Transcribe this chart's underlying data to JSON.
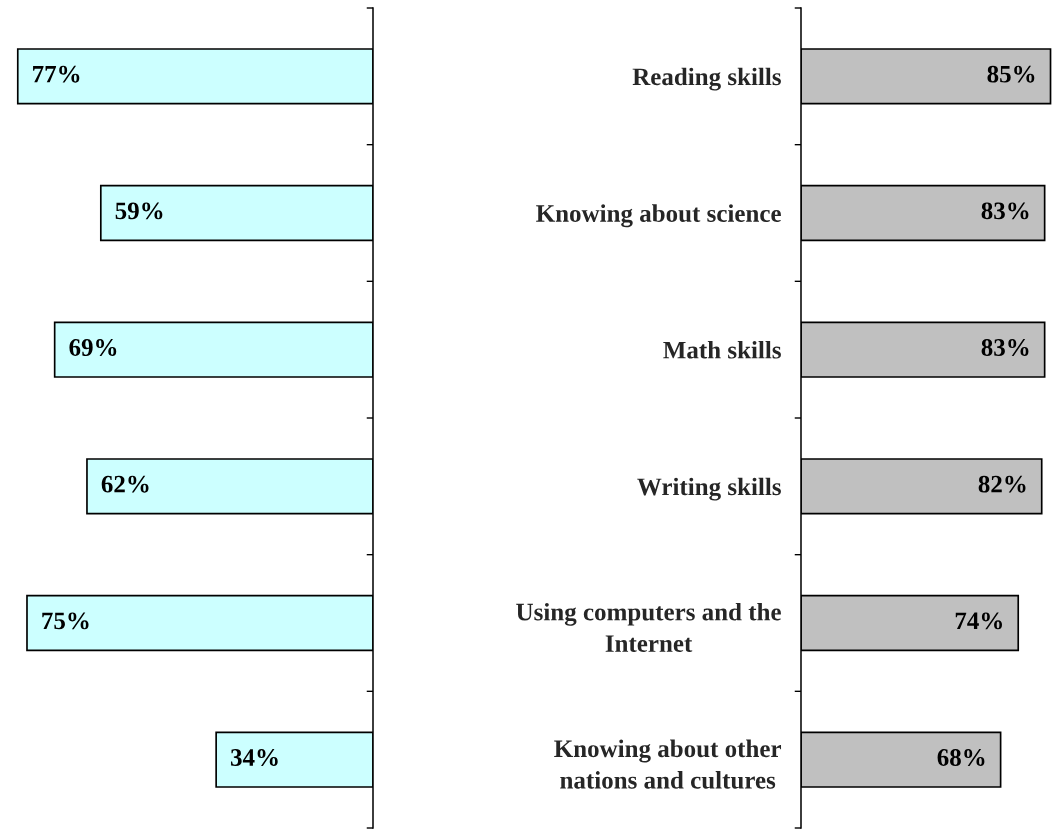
{
  "chart_data": [
    {
      "type": "bar",
      "orientation": "horizontal",
      "categories": [
        "Reading skills",
        "Knowing about science",
        "Math skills",
        "Writing skills",
        "Using computers and the Internet",
        "Knowing about other nations and cultures"
      ],
      "values": [
        77,
        59,
        69,
        62,
        75,
        34
      ],
      "value_labels": [
        "77%",
        "59%",
        "69%",
        "62%",
        "75%",
        "34%"
      ],
      "color": "#ccffff",
      "tick_labels": false
    },
    {
      "type": "bar",
      "orientation": "horizontal",
      "categories": [
        "Reading skills",
        "Knowing about science",
        "Math skills",
        "Writing skills",
        "Using computers and the Internet",
        "Knowing about other nations and cultures"
      ],
      "values": [
        85,
        83,
        83,
        82,
        74,
        68
      ],
      "value_labels": [
        "85%",
        "83%",
        "83%",
        "82%",
        "74%",
        "68%"
      ],
      "color": "#c0c0c0",
      "tick_labels": "y"
    }
  ]
}
